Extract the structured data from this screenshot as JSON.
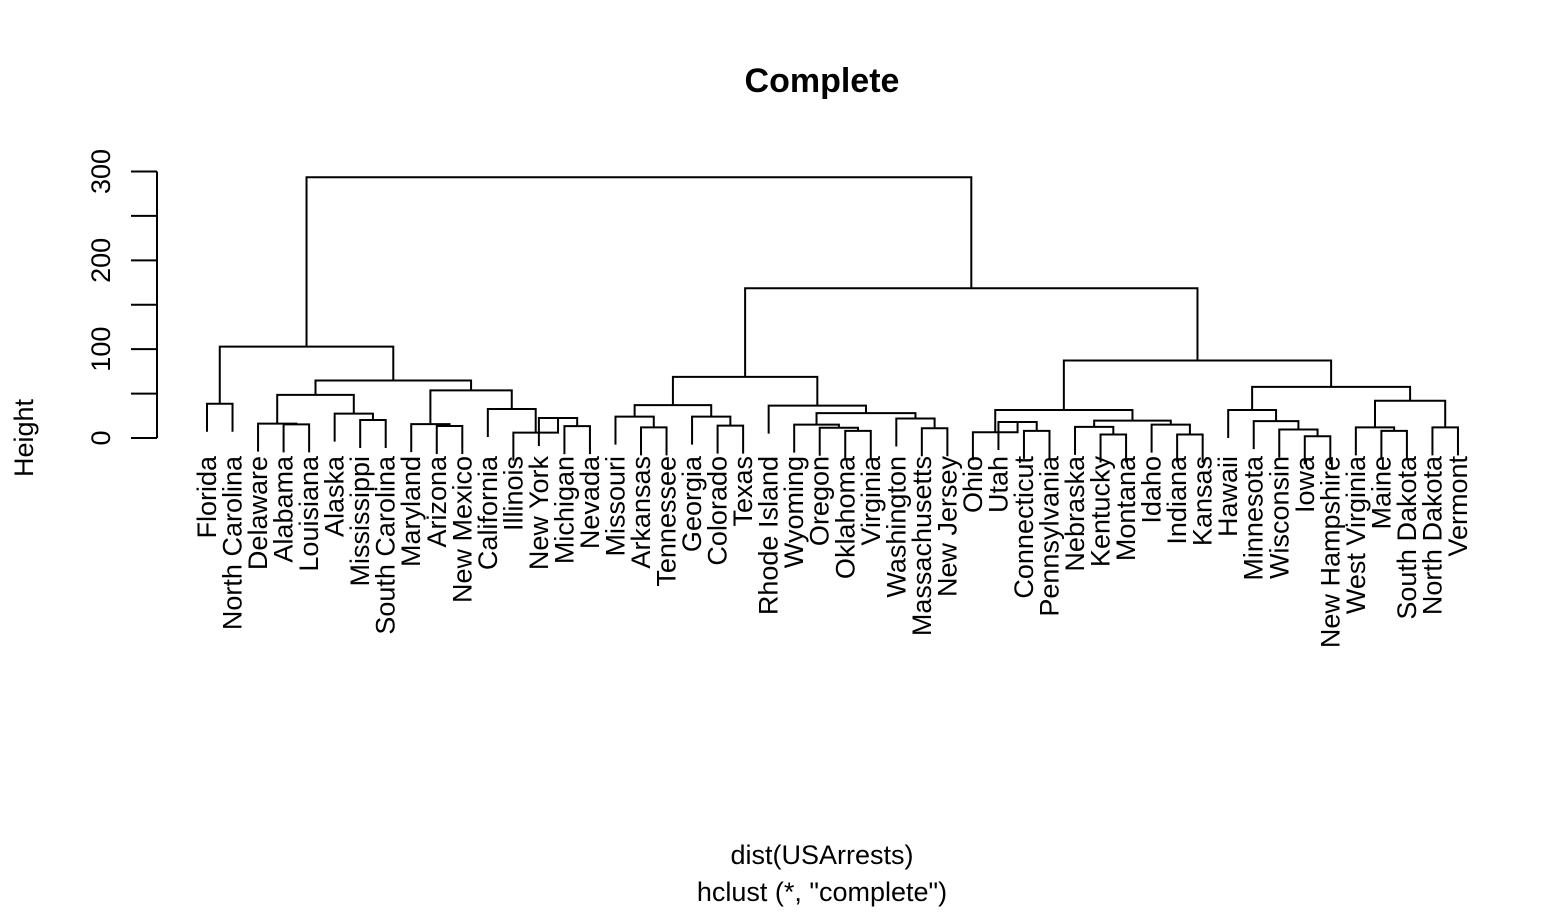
{
  "chart_data": {
    "type": "dendrogram",
    "title": "Complete",
    "xlabel": "dist(USArrests)",
    "sub": "hclust (*, \"complete\")",
    "ylabel": "Height",
    "ylim": [
      0,
      300
    ],
    "yticks": [
      0,
      100,
      200,
      300
    ],
    "minor_ticks": [
      50,
      150,
      250
    ],
    "leaves": [
      "Florida",
      "North Carolina",
      "Delaware",
      "Alabama",
      "Louisiana",
      "Alaska",
      "Mississippi",
      "South Carolina",
      "Maryland",
      "Arizona",
      "New Mexico",
      "California",
      "Illinois",
      "New York",
      "Michigan",
      "Nevada",
      "Missouri",
      "Arkansas",
      "Tennessee",
      "Georgia",
      "Colorado",
      "Texas",
      "Rhode Island",
      "Wyoming",
      "Oregon",
      "Oklahoma",
      "Virginia",
      "Washington",
      "Massachusetts",
      "New Jersey",
      "Ohio",
      "Utah",
      "Connecticut",
      "Pennsylvania",
      "Nebraska",
      "Kentucky",
      "Montana",
      "Idaho",
      "Indiana",
      "Kansas",
      "Hawaii",
      "Minnesota",
      "Wisconsin",
      "Iowa",
      "New Hampshire",
      "West Virginia",
      "Maine",
      "South Dakota",
      "North Dakota",
      "Vermont"
    ],
    "merges": [
      [
        [
          0
        ],
        [
          1
        ],
        38.5
      ],
      [
        [
          3
        ],
        [
          4
        ],
        15.4
      ],
      [
        [
          2
        ],
        [
          3,
          4
        ],
        16.2
      ],
      [
        [
          6
        ],
        [
          7
        ],
        20.2
      ],
      [
        [
          5
        ],
        [
          6,
          7
        ],
        27.5
      ],
      [
        [
          2,
          3,
          4
        ],
        [
          5,
          6,
          7
        ],
        48.6
      ],
      [
        [
          9
        ],
        [
          10
        ],
        13.5
      ],
      [
        [
          8
        ],
        [
          9,
          10
        ],
        15.6
      ],
      [
        [
          14
        ],
        [
          15
        ],
        13.4
      ],
      [
        [
          13
        ],
        [
          14,
          15
        ],
        22.5
      ],
      [
        [
          12
        ],
        [
          13,
          14,
          15
        ],
        6.0
      ],
      [
        [
          11
        ],
        [
          12,
          13,
          14,
          15
        ],
        32.7
      ],
      [
        [
          8,
          9,
          10
        ],
        [
          11,
          12,
          13,
          14,
          15
        ],
        53.6
      ],
      [
        [
          2,
          3,
          4,
          5,
          6,
          7
        ],
        [
          8,
          9,
          10,
          11,
          12,
          13,
          14,
          15
        ],
        64.8
      ],
      [
        [
          0,
          1
        ],
        [
          2,
          3,
          4,
          5,
          6,
          7,
          8,
          9,
          10,
          11,
          12,
          13,
          14,
          15
        ],
        102.9
      ],
      [
        [
          18
        ],
        [
          17
        ],
        12.0
      ],
      [
        [
          16
        ],
        [
          17,
          18
        ],
        24.0
      ],
      [
        [
          20
        ],
        [
          21
        ],
        14.0
      ],
      [
        [
          19
        ],
        [
          20,
          21
        ],
        24.0
      ],
      [
        [
          16,
          17,
          18
        ],
        [
          19,
          20,
          21
        ],
        37.0
      ],
      [
        [
          25
        ],
        [
          26
        ],
        8.0
      ],
      [
        [
          24
        ],
        [
          25,
          26
        ],
        11.5
      ],
      [
        [
          23
        ],
        [
          24,
          25,
          26
        ],
        15.0
      ],
      [
        [
          28
        ],
        [
          29
        ],
        11.0
      ],
      [
        [
          27
        ],
        [
          28,
          29
        ],
        22.0
      ],
      [
        [
          23,
          24,
          25,
          26
        ],
        [
          27,
          28,
          29
        ],
        28.0
      ],
      [
        [
          22
        ],
        [
          23,
          24,
          25,
          26,
          27,
          28,
          29
        ],
        36.5
      ],
      [
        [
          16,
          17,
          18,
          19,
          20,
          21
        ],
        [
          22,
          23,
          24,
          25,
          26,
          27,
          28,
          29
        ],
        68.8
      ],
      [
        [
          32
        ],
        [
          33
        ],
        8.0
      ],
      [
        [
          31
        ],
        [
          32,
          33
        ],
        18.0
      ],
      [
        [
          30
        ],
        [
          31,
          32,
          33
        ],
        6.5
      ],
      [
        [
          35
        ],
        [
          36
        ],
        4.0
      ],
      [
        [
          34
        ],
        [
          35,
          36
        ],
        12.5
      ],
      [
        [
          38
        ],
        [
          39
        ],
        4.0
      ],
      [
        [
          37
        ],
        [
          38,
          39
        ],
        15.0
      ],
      [
        [
          34,
          35,
          36
        ],
        [
          37,
          38,
          39
        ],
        19.5
      ],
      [
        [
          30,
          31,
          32,
          33
        ],
        [
          34,
          35,
          36,
          37,
          38,
          39
        ],
        31.5
      ],
      [
        [
          43
        ],
        [
          44
        ],
        2.0
      ],
      [
        [
          42
        ],
        [
          43,
          44
        ],
        9.5
      ],
      [
        [
          41
        ],
        [
          42,
          43,
          44
        ],
        19.0
      ],
      [
        [
          40
        ],
        [
          41,
          42,
          43,
          44
        ],
        31.5
      ],
      [
        [
          46
        ],
        [
          47
        ],
        8.0
      ],
      [
        [
          45
        ],
        [
          46,
          47
        ],
        12.0
      ],
      [
        [
          48
        ],
        [
          49
        ],
        12.0
      ],
      [
        [
          45,
          46,
          47
        ],
        [
          48,
          49
        ],
        42.0
      ],
      [
        [
          40,
          41,
          42,
          43,
          44
        ],
        [
          45,
          46,
          47,
          48,
          49
        ],
        57.5
      ],
      [
        [
          30,
          31,
          32,
          33,
          34,
          35,
          36,
          37,
          38,
          39
        ],
        [
          40,
          41,
          42,
          43,
          44,
          45,
          46,
          47,
          48,
          49
        ],
        87.3
      ],
      [
        [
          16,
          17,
          18,
          19,
          20,
          21,
          22,
          23,
          24,
          25,
          26,
          27,
          28,
          29
        ],
        [
          30,
          31,
          32,
          33,
          34,
          35,
          36,
          37,
          38,
          39,
          40,
          41,
          42,
          43,
          44,
          45,
          46,
          47,
          48,
          49
        ],
        168.6
      ],
      [
        [
          0,
          1,
          2,
          3,
          4,
          5,
          6,
          7,
          8,
          9,
          10,
          11,
          12,
          13,
          14,
          15
        ],
        [
          16,
          17,
          18,
          19,
          20,
          21,
          22,
          23,
          24,
          25,
          26,
          27,
          28,
          29,
          30,
          31,
          32,
          33,
          34,
          35,
          36,
          37,
          38,
          39,
          40,
          41,
          42,
          43,
          44,
          45,
          46,
          47,
          48,
          49
        ],
        293.6
      ]
    ]
  }
}
